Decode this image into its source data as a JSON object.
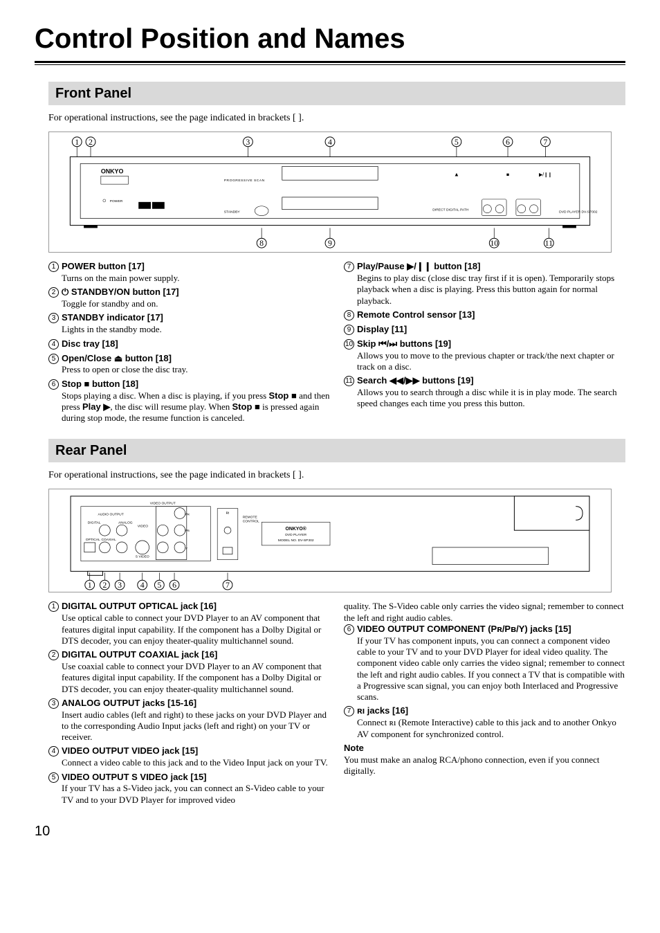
{
  "page": {
    "title": "Control Position and Names",
    "number": "10"
  },
  "front": {
    "heading": "Front Panel",
    "intro": "For operational instructions, see the page indicated in brackets [  ].",
    "items_left": [
      {
        "num": "1",
        "title": "POWER button [17]",
        "desc": "Turns on the main power supply."
      },
      {
        "num": "2",
        "title": "STANDBY/ON button [17]",
        "prefix_sym": "⏻",
        "desc": "Toggle for standby and on."
      },
      {
        "num": "3",
        "title": "STANDBY indicator [17]",
        "desc": "Lights in the standby mode."
      },
      {
        "num": "4",
        "title": "Disc tray [18]",
        "desc": ""
      },
      {
        "num": "5",
        "title": "Open/Close ⏏ button [18]",
        "desc": "Press to open or close the disc tray."
      },
      {
        "num": "6",
        "title": "Stop ■ button [18]",
        "desc_html": "Stops playing a disc. When a disc is playing, if you press <b>Stop ■</b> and then press <b>Play ▶</b>, the disc will resume play. When <b>Stop ■</b> is pressed again during stop mode, the resume function is canceled."
      }
    ],
    "items_right": [
      {
        "num": "7",
        "title": "Play/Pause ▶/❙❙ button [18]",
        "desc": "Begins to play disc (close disc tray first if it is open). Temporarily stops playback when a disc is playing. Press this button again for normal playback."
      },
      {
        "num": "8",
        "title": "Remote Control sensor [13]",
        "desc": ""
      },
      {
        "num": "9",
        "title": "Display [11]",
        "desc": ""
      },
      {
        "num": "10",
        "title": "Skip ⏮/⏭ buttons [19]",
        "desc": "Allows you to move to the previous chapter or track/the next chapter or track on a disc."
      },
      {
        "num": "11",
        "title": "Search ◀◀/▶▶ buttons [19]",
        "desc": "Allows you to search through a disc while it is in play mode. The search speed changes each time you press this button."
      }
    ]
  },
  "rear": {
    "heading": "Rear Panel",
    "intro": "For operational instructions, see the page indicated in brackets [  ].",
    "items_left": [
      {
        "num": "1",
        "title": "DIGITAL OUTPUT OPTICAL jack [16]",
        "desc": "Use optical cable to connect your DVD Player to an AV component that features digital input capability. If the component has a Dolby Digital or DTS decoder, you can enjoy theater-quality multichannel sound."
      },
      {
        "num": "2",
        "title": "DIGITAL OUTPUT COAXIAL jack [16]",
        "desc": "Use coaxial cable to connect your DVD Player to an AV component that features digital input capability. If the component has a Dolby Digital or DTS decoder, you can enjoy theater-quality multichannel sound."
      },
      {
        "num": "3",
        "title": "ANALOG OUTPUT jacks [15-16]",
        "desc": "Insert audio cables (left and right) to these jacks on your DVD Player and to the corresponding Audio Input jacks (left and right) on your TV or receiver."
      },
      {
        "num": "4",
        "title": "VIDEO OUTPUT VIDEO jack [15]",
        "desc": "Connect a video cable to this jack and to the Video Input jack on your TV."
      },
      {
        "num": "5",
        "title": "VIDEO OUTPUT S VIDEO jack [15]",
        "desc": "If your TV has a S-Video jack, you can connect an S-Video cable to your TV and to your DVD Player for improved video"
      }
    ],
    "items_right_lead": "quality. The S-Video cable only carries the video signal; remember to connect the left and right audio cables.",
    "items_right": [
      {
        "num": "6",
        "title": "VIDEO OUTPUT COMPONENT (Pʀ/Pʙ/Y) jacks [15]",
        "desc": "If your TV has component inputs, you can connect a component video cable to your TV and to your DVD Player for ideal video quality. The component video cable only carries the video signal; remember to connect the left and right audio cables. If you connect a TV that is compatible with a Progressive scan signal, you can enjoy both Interlaced and Progressive scans."
      },
      {
        "num": "7",
        "title": "ʀı jacks [16]",
        "desc": "Connect ʀı (Remote Interactive) cable to this jack and to another Onkyo AV component for synchronized control."
      }
    ],
    "note_title": "Note",
    "note_body": "You must make an analog RCA/phono connection, even if you connect digitally."
  },
  "styling": {
    "background": "#ffffff",
    "section_bg": "#d9d9d9",
    "text_color": "#000000",
    "title_fontsize_pt": 30,
    "section_fontsize_pt": 15,
    "body_fontsize_pt": 10,
    "heading_font": "Arial",
    "body_font": "Times New Roman"
  }
}
